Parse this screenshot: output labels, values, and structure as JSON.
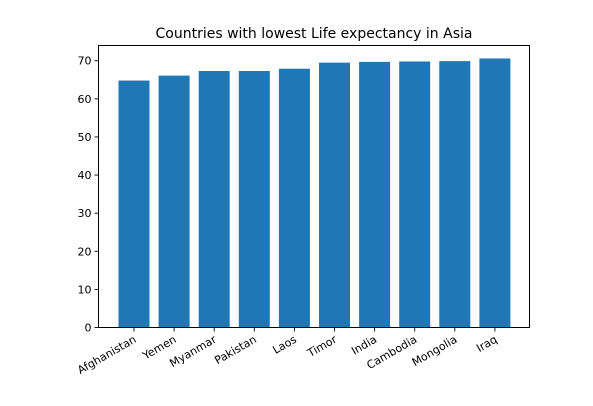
{
  "chart_data": {
    "type": "bar",
    "title": "Countries with lowest Life expectancy in Asia",
    "xlabel": "",
    "ylabel": "",
    "categories": [
      "Afghanistan",
      "Yemen",
      "Myanmar",
      "Pakistan",
      "Laos",
      "Timor",
      "India",
      "Cambodia",
      "Mongolia",
      "Iraq"
    ],
    "values": [
      64.8,
      66.1,
      67.3,
      67.3,
      67.9,
      69.5,
      69.7,
      69.8,
      69.9,
      70.6
    ],
    "ylim": [
      0,
      74
    ],
    "yticks": [
      0,
      10,
      20,
      30,
      40,
      50,
      60,
      70
    ],
    "bar_color": "#1f77b4",
    "grid": false,
    "legend": "none"
  }
}
